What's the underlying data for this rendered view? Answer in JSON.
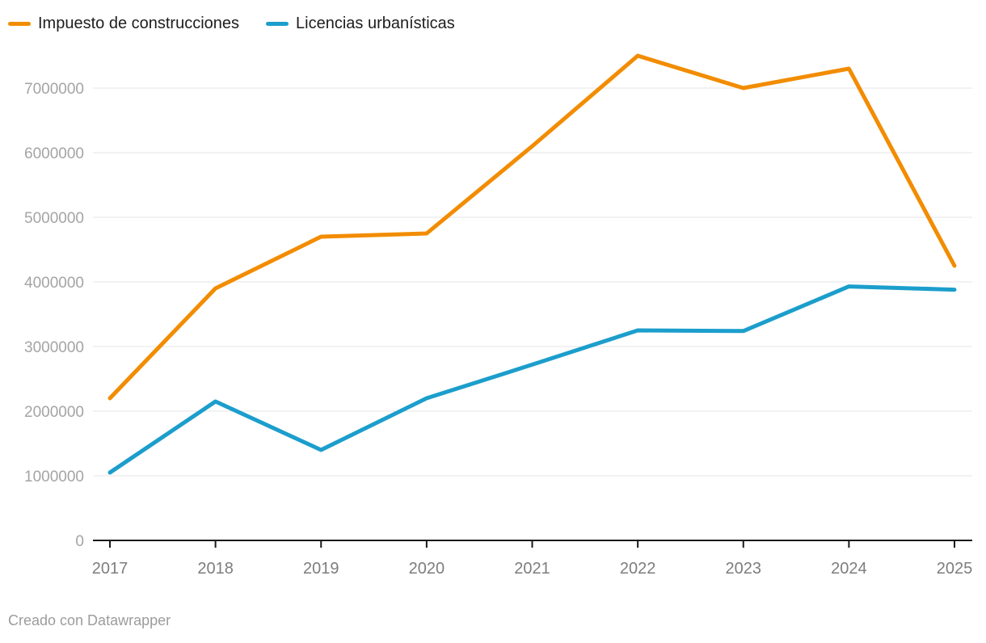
{
  "legend": {
    "items": [
      {
        "label": "Impuesto de construcciones",
        "color": "#f28c00"
      },
      {
        "label": "Licencias urbanísticas",
        "color": "#1c9ecc"
      }
    ]
  },
  "footer": {
    "text": "Creado con Datawrapper"
  },
  "colors": {
    "impuesto_line": "#f28c00",
    "licencias_line": "#1c9ecc",
    "gridline": "#e5e5e5",
    "axis_line": "#1a1a1a",
    "y_tick_label": "#a4a4a4",
    "x_tick_label": "#7d7d7d",
    "legend_text": "#1d1d1d",
    "footer_text": "#9c9c9c",
    "background": "#ffffff"
  },
  "chart_data": {
    "type": "line",
    "title": "",
    "xlabel": "",
    "ylabel": "",
    "x": [
      2017,
      2018,
      2019,
      2020,
      2021,
      2022,
      2023,
      2024,
      2025
    ],
    "x_tick_labels": [
      "2017",
      "2018",
      "2019",
      "2020",
      "2021",
      "2022",
      "2023",
      "2024",
      "2025"
    ],
    "yticks": [
      0,
      1000000,
      2000000,
      3000000,
      4000000,
      5000000,
      6000000,
      7000000
    ],
    "y_tick_labels": [
      "0",
      "1000000",
      "2000000",
      "3000000",
      "4000000",
      "5000000",
      "6000000",
      "7000000"
    ],
    "ylim": [
      0,
      7600000
    ],
    "grid": "horizontal",
    "legend_position": "top-left",
    "series": [
      {
        "name": "Impuesto de construcciones",
        "color": "#f28c00",
        "values": [
          2200000,
          3900000,
          4700000,
          4750000,
          6100000,
          7500000,
          7000000,
          7300000,
          4250000
        ]
      },
      {
        "name": "Licencias urbanísticas",
        "color": "#1c9ecc",
        "values": [
          1050000,
          2150000,
          1400000,
          2200000,
          2720000,
          3250000,
          3240000,
          3930000,
          3880000
        ]
      }
    ]
  }
}
